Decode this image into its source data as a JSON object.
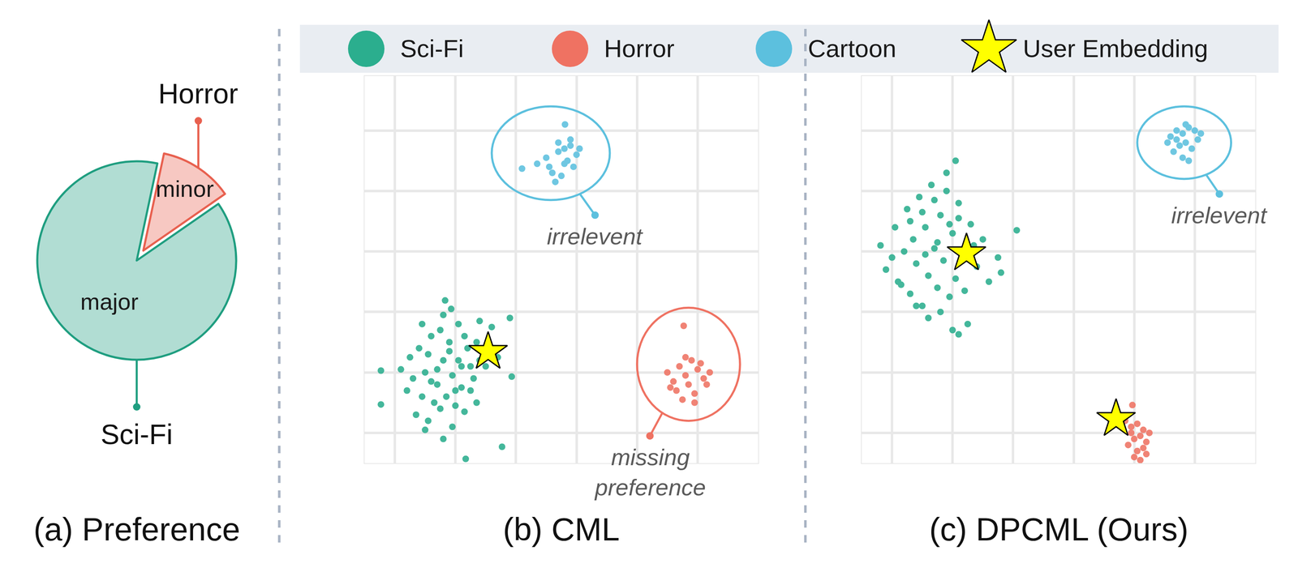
{
  "chart_data": [
    {
      "type": "pie",
      "title": "(a) Preference",
      "categories": [
        "Sci-Fi",
        "Horror"
      ],
      "values": [
        88,
        12
      ],
      "texts": [
        "major",
        "minor"
      ],
      "colors": [
        "#1f9e80",
        "#e8604f"
      ]
    },
    {
      "type": "scatter",
      "title": "(b) CML",
      "xlim": [
        0,
        6.5
      ],
      "ylim": [
        0,
        6.4
      ],
      "xticks": [
        0.5,
        1.5,
        2.5,
        3.5,
        4.5,
        5.5
      ],
      "yticks": [
        0.5,
        1.5,
        2.5,
        3.5,
        4.5,
        5.5
      ],
      "grid": true,
      "tick_labels": false,
      "legend": "top",
      "series": [
        {
          "name": "Sci-Fi",
          "color": "#2bae8e",
          "marker": "circle",
          "x": [
            0.27,
            0.27,
            1.67,
            2.27,
            1.33,
            1.43,
            2.4,
            2.43,
            2.1,
            0.9,
            1.0,
            1.1,
            1.2,
            1.3,
            1.4,
            1.5,
            1.6,
            1.7,
            1.8,
            1.9,
            0.8,
            0.95,
            1.05,
            1.15,
            1.25,
            1.35,
            1.45,
            1.55,
            1.65,
            1.75,
            1.85,
            2.0,
            2.15,
            0.75,
            0.85,
            1.05,
            1.25,
            1.45,
            1.65,
            1.85,
            1.2,
            1.4,
            1.6,
            1.1,
            1.3,
            1.5,
            0.7,
            0.95,
            1.75,
            2.2,
            1.9,
            1.0,
            1.3,
            1.55,
            0.6
          ],
          "y": [
            1.53,
            0.97,
            0.07,
            0.27,
            2.69,
            2.55,
            2.4,
            1.43,
            2.25,
            1.9,
            1.5,
            2.1,
            1.3,
            1.7,
            2.0,
            1.2,
            1.6,
            1.9,
            1.4,
            1.7,
            1.4,
            1.1,
            1.8,
            1.0,
            2.2,
            1.1,
            1.45,
            2.3,
            2.1,
            1.2,
            2.0,
            1.6,
            1.9,
            1.75,
            0.8,
            0.7,
            0.9,
            0.6,
            0.85,
            1.0,
            1.55,
            1.85,
            1.25,
            1.35,
            0.4,
            0.95,
            1.2,
            2.3,
            1.6,
            1.75,
            2.35,
            0.55,
            2.45,
            1.7,
            1.55
          ]
        },
        {
          "name": "Horror",
          "color": "#ef7262",
          "marker": "circle",
          "x": [
            5.27,
            5.0,
            5.1,
            5.2,
            5.3,
            5.4,
            5.5,
            5.6,
            5.7,
            5.15,
            5.25,
            5.35,
            5.45,
            5.55,
            5.05,
            5.65,
            5.3,
            5.45
          ],
          "y": [
            2.27,
            1.5,
            1.35,
            1.6,
            1.45,
            1.7,
            1.55,
            1.4,
            1.5,
            1.2,
            1.05,
            1.3,
            1.15,
            1.65,
            1.25,
            1.3,
            1.75,
            1.0
          ]
        },
        {
          "name": "Cartoon",
          "color": "#5cc0de",
          "marker": "circle",
          "x": [
            3.31,
            2.6,
            2.85,
            3.0,
            3.1,
            3.2,
            3.3,
            3.4,
            3.5,
            3.55,
            3.15,
            3.25,
            3.35,
            3.45,
            3.05,
            3.2,
            3.4,
            3.3
          ],
          "y": [
            5.6,
            4.87,
            4.95,
            5.05,
            4.8,
            5.15,
            4.95,
            5.25,
            5.1,
            5.2,
            4.65,
            4.75,
            5.0,
            4.9,
            4.9,
            5.3,
            5.35,
            5.2
          ]
        },
        {
          "name": "User Embedding",
          "color": "#ffff00",
          "marker": "star",
          "x": [
            2.04
          ],
          "y": [
            1.84
          ]
        }
      ],
      "annotations": [
        {
          "text": [
            "irrelevent"
          ],
          "series": "Cartoon"
        },
        {
          "text": [
            "missing",
            "preference"
          ],
          "series": "Horror"
        }
      ]
    },
    {
      "type": "scatter",
      "title": "(c) DPCML (Ours)",
      "xlim": [
        0,
        6.5
      ],
      "ylim": [
        0,
        6.4
      ],
      "xticks": [
        0.5,
        1.5,
        2.5,
        3.5,
        4.5,
        5.5
      ],
      "yticks": [
        0.5,
        1.5,
        2.5,
        3.5,
        4.5,
        5.5
      ],
      "grid": true,
      "tick_labels": false,
      "legend": "top",
      "series": [
        {
          "name": "Sci-Fi",
          "color": "#2bae8e",
          "marker": "circle",
          "x": [
            0.31,
            0.4,
            0.55,
            0.6,
            0.7,
            0.75,
            0.8,
            0.85,
            0.9,
            0.95,
            1.0,
            1.05,
            1.1,
            1.15,
            1.2,
            1.25,
            1.3,
            1.35,
            1.4,
            1.45,
            1.5,
            1.55,
            1.6,
            1.65,
            1.7,
            1.8,
            1.9,
            2.0,
            2.1,
            2.25,
            2.56,
            1.55,
            0.65,
            0.9,
            1.1,
            1.3,
            1.5,
            1.75,
            0.8,
            1.0,
            1.2,
            1.4,
            1.6,
            1.85,
            2.3,
            0.5,
            1.25,
            1.45,
            1.05,
            1.6
          ],
          "y": [
            3.6,
            3.2,
            3.9,
            3.0,
            3.5,
            4.2,
            2.8,
            3.7,
            3.3,
            4.4,
            2.6,
            3.9,
            3.1,
            4.6,
            3.55,
            2.9,
            4.1,
            3.35,
            4.8,
            2.75,
            3.8,
            3.05,
            4.3,
            3.5,
            2.85,
            3.95,
            3.25,
            3.7,
            3.0,
            3.4,
            3.85,
            5.0,
            2.95,
            2.6,
            2.4,
            2.5,
            2.2,
            2.3,
            4.0,
            4.15,
            4.35,
            4.5,
            4.05,
            3.6,
            3.15,
            3.4,
            3.65,
            3.95,
            3.45,
            2.13
          ]
        },
        {
          "name": "Horror",
          "color": "#ef7262",
          "marker": "circle",
          "x": [
            4.47,
            4.35,
            4.45,
            4.55,
            4.65,
            4.75,
            4.5,
            4.6,
            4.7,
            4.4,
            4.55,
            4.65,
            4.5,
            4.6,
            4.7,
            4.45
          ],
          "y": [
            0.96,
            0.7,
            0.6,
            0.65,
            0.55,
            0.5,
            0.4,
            0.45,
            0.35,
            0.3,
            0.2,
            0.25,
            0.1,
            0.05,
            0.15,
            0.5
          ]
        },
        {
          "name": "Cartoon",
          "color": "#5cc0de",
          "marker": "circle",
          "x": [
            5.1,
            5.2,
            5.3,
            5.4,
            5.5,
            5.25,
            5.35,
            5.45,
            5.55,
            5.15,
            5.3,
            5.4,
            5.6,
            5.05,
            5.35,
            5.2
          ],
          "y": [
            5.4,
            5.5,
            5.45,
            5.55,
            5.5,
            5.25,
            5.3,
            5.2,
            5.35,
            5.15,
            5.05,
            5.0,
            5.45,
            5.3,
            5.6,
            5.35
          ]
        },
        {
          "name": "User Embedding",
          "color": "#ffff00",
          "marker": "star",
          "x": [
            1.73,
            4.2
          ],
          "y": [
            3.47,
            0.73
          ]
        }
      ],
      "annotations": [
        {
          "text": [
            "irrelevent"
          ],
          "series": "Cartoon"
        }
      ]
    }
  ]
}
